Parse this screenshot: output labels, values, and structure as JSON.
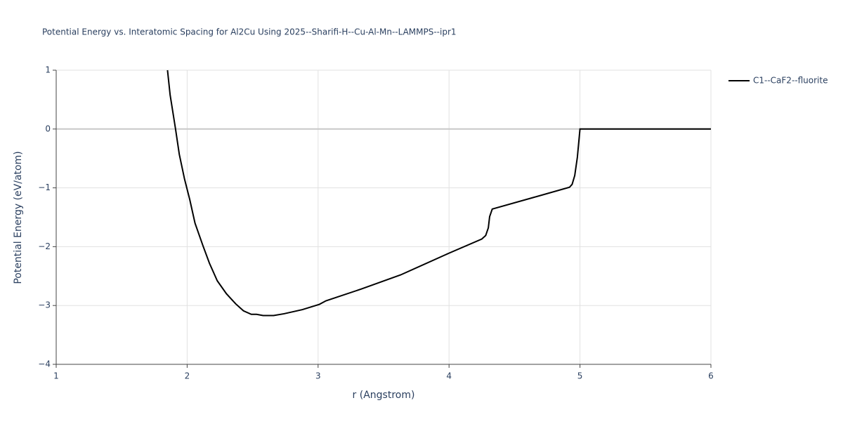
{
  "chart_data": {
    "type": "line",
    "title": "Potential Energy vs. Interatomic Spacing for Al2Cu Using 2025--Sharifi-H--Cu-Al-Mn--LAMMPS--ipr1",
    "x_label": "r (Angstrom)",
    "y_label": "Potential Energy (eV/atom)",
    "x": [
      1.85,
      1.87,
      1.91,
      1.94,
      1.98,
      2.02,
      2.06,
      2.12,
      2.17,
      2.23,
      2.3,
      2.37,
      2.43,
      2.49,
      2.53,
      2.58,
      2.66,
      2.74,
      2.88,
      3.01,
      3.06,
      3.33,
      3.63,
      4.0,
      4.25,
      4.28,
      4.3,
      4.31,
      4.33,
      4.65,
      4.92,
      4.94,
      4.96,
      4.98,
      5.0,
      6.0
    ],
    "series": [
      {
        "name": "C1--CaF2--fluorite",
        "color": "#000000",
        "values": [
          1,
          0.58,
          0.02,
          -0.43,
          -0.85,
          -1.2,
          -1.6,
          -1.98,
          -2.28,
          -2.58,
          -2.8,
          -2.97,
          -3.09,
          -3.15,
          -3.15,
          -3.17,
          -3.17,
          -3.14,
          -3.07,
          -2.98,
          -2.92,
          -2.72,
          -2.48,
          -2.11,
          -1.87,
          -1.81,
          -1.68,
          -1.49,
          -1.36,
          -1.16,
          -0.99,
          -0.94,
          -0.79,
          -0.48,
          0,
          0
        ]
      }
    ],
    "xlim": [
      1,
      6
    ],
    "xticks": [
      1,
      2,
      3,
      4,
      5,
      6
    ],
    "ylim": [
      -4,
      1
    ],
    "yticks": [
      {
        "value": -4,
        "label": "−4"
      },
      {
        "value": -3,
        "label": "−3"
      },
      {
        "value": -2,
        "label": "−2"
      },
      {
        "value": -1,
        "label": "−1"
      },
      0,
      1
    ],
    "grid": true,
    "legend": "right"
  }
}
